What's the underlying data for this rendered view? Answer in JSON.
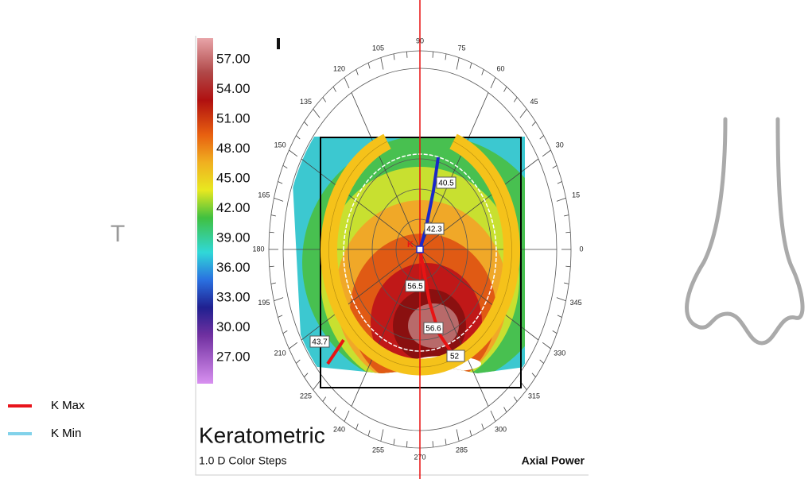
{
  "legend": {
    "items": [
      {
        "label": "K Max",
        "color": "#e8141b"
      },
      {
        "label": "K Min",
        "color": "#82d2ea"
      }
    ]
  },
  "side_label": "T",
  "color_scale": {
    "labels": [
      "57.00",
      "54.00",
      "51.00",
      "48.00",
      "45.00",
      "42.00",
      "39.00",
      "36.00",
      "33.00",
      "30.00",
      "27.00"
    ]
  },
  "map": {
    "angle_labels": [
      "0",
      "15",
      "30",
      "45",
      "60",
      "75",
      "90",
      "105",
      "120",
      "135",
      "150",
      "165",
      "180",
      "195",
      "210",
      "225",
      "240",
      "255",
      "270",
      "285",
      "300",
      "315",
      "330",
      "345"
    ],
    "marker": "K",
    "kmin_labels": [
      "40.5",
      "42.3"
    ],
    "kmax_labels": [
      "56.5",
      "56.6",
      "52",
      "43.7"
    ]
  },
  "footer": {
    "title": "Keratometric",
    "steps": "1.0 D Color Steps",
    "mode": "Axial Power"
  }
}
